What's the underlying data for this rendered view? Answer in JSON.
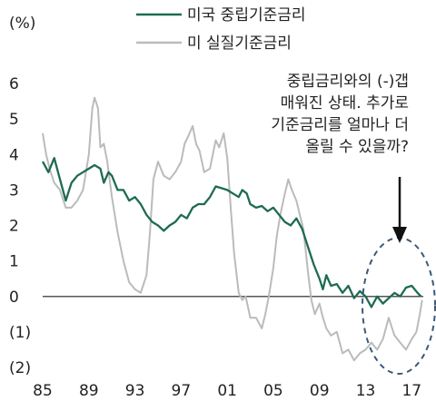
{
  "chart_data": {
    "type": "line",
    "yunit": "(%)",
    "ylim": [
      -2,
      6
    ],
    "xlim": [
      1985,
      2018
    ],
    "y_ticks": [
      {
        "v": 6,
        "label": "6"
      },
      {
        "v": 5,
        "label": "5"
      },
      {
        "v": 4,
        "label": "4"
      },
      {
        "v": 3,
        "label": "3"
      },
      {
        "v": 2,
        "label": "2"
      },
      {
        "v": 1,
        "label": "1"
      },
      {
        "v": 0,
        "label": "0"
      },
      {
        "v": -1,
        "label": "(1)"
      },
      {
        "v": -2,
        "label": "(2)"
      }
    ],
    "x_ticks": [
      {
        "v": 1985,
        "label": "85"
      },
      {
        "v": 1989,
        "label": "89"
      },
      {
        "v": 1993,
        "label": "93"
      },
      {
        "v": 1997,
        "label": "97"
      },
      {
        "v": 2001,
        "label": "01"
      },
      {
        "v": 2005,
        "label": "05"
      },
      {
        "v": 2009,
        "label": "09"
      },
      {
        "v": 2013,
        "label": "13"
      },
      {
        "v": 2017,
        "label": "17"
      }
    ],
    "series": [
      {
        "name": "미국 중립기준금리",
        "color": "#1e6b52",
        "points": [
          [
            1985.0,
            3.8
          ],
          [
            1985.5,
            3.5
          ],
          [
            1986.0,
            3.9
          ],
          [
            1986.5,
            3.3
          ],
          [
            1987.0,
            2.7
          ],
          [
            1987.5,
            3.2
          ],
          [
            1988.0,
            3.4
          ],
          [
            1988.5,
            3.5
          ],
          [
            1989.0,
            3.6
          ],
          [
            1989.5,
            3.7
          ],
          [
            1990.0,
            3.6
          ],
          [
            1990.3,
            3.2
          ],
          [
            1990.7,
            3.5
          ],
          [
            1991.0,
            3.4
          ],
          [
            1991.5,
            3.0
          ],
          [
            1992.0,
            3.0
          ],
          [
            1992.5,
            2.7
          ],
          [
            1993.0,
            2.8
          ],
          [
            1993.5,
            2.6
          ],
          [
            1994.0,
            2.3
          ],
          [
            1994.5,
            2.1
          ],
          [
            1995.0,
            2.0
          ],
          [
            1995.5,
            1.85
          ],
          [
            1996.0,
            2.0
          ],
          [
            1996.5,
            2.1
          ],
          [
            1997.0,
            2.3
          ],
          [
            1997.5,
            2.2
          ],
          [
            1998.0,
            2.5
          ],
          [
            1998.5,
            2.6
          ],
          [
            1999.0,
            2.6
          ],
          [
            1999.5,
            2.8
          ],
          [
            2000.0,
            3.1
          ],
          [
            2000.5,
            3.05
          ],
          [
            2001.0,
            3.0
          ],
          [
            2001.5,
            2.9
          ],
          [
            2002.0,
            2.8
          ],
          [
            2002.3,
            3.0
          ],
          [
            2002.7,
            2.9
          ],
          [
            2003.0,
            2.6
          ],
          [
            2003.5,
            2.5
          ],
          [
            2004.0,
            2.55
          ],
          [
            2004.5,
            2.4
          ],
          [
            2005.0,
            2.5
          ],
          [
            2005.5,
            2.3
          ],
          [
            2006.0,
            2.1
          ],
          [
            2006.5,
            2.0
          ],
          [
            2007.0,
            2.2
          ],
          [
            2007.5,
            1.9
          ],
          [
            2008.0,
            1.4
          ],
          [
            2008.5,
            0.9
          ],
          [
            2009.0,
            0.5
          ],
          [
            2009.3,
            0.2
          ],
          [
            2009.6,
            0.6
          ],
          [
            2010.0,
            0.3
          ],
          [
            2010.5,
            0.35
          ],
          [
            2011.0,
            0.1
          ],
          [
            2011.5,
            0.3
          ],
          [
            2012.0,
            -0.05
          ],
          [
            2012.5,
            0.15
          ],
          [
            2013.0,
            0.0
          ],
          [
            2013.5,
            -0.3
          ],
          [
            2014.0,
            0.0
          ],
          [
            2014.5,
            -0.2
          ],
          [
            2015.0,
            -0.05
          ],
          [
            2015.5,
            0.1
          ],
          [
            2016.0,
            0.0
          ],
          [
            2016.5,
            0.25
          ],
          [
            2017.0,
            0.3
          ],
          [
            2017.5,
            0.1
          ],
          [
            2017.8,
            0.0
          ]
        ]
      },
      {
        "name": "미 실질기준금리",
        "color": "#bbbbbb",
        "points": [
          [
            1985.0,
            4.6
          ],
          [
            1985.3,
            4.0
          ],
          [
            1985.6,
            3.6
          ],
          [
            1986.0,
            3.2
          ],
          [
            1986.5,
            3.0
          ],
          [
            1987.0,
            2.5
          ],
          [
            1987.5,
            2.5
          ],
          [
            1988.0,
            2.7
          ],
          [
            1988.5,
            3.0
          ],
          [
            1989.0,
            4.0
          ],
          [
            1989.3,
            5.3
          ],
          [
            1989.5,
            5.6
          ],
          [
            1989.8,
            5.3
          ],
          [
            1990.0,
            4.2
          ],
          [
            1990.3,
            4.3
          ],
          [
            1990.6,
            3.8
          ],
          [
            1991.0,
            2.8
          ],
          [
            1991.5,
            1.8
          ],
          [
            1992.0,
            1.0
          ],
          [
            1992.5,
            0.4
          ],
          [
            1993.0,
            0.2
          ],
          [
            1993.5,
            0.1
          ],
          [
            1994.0,
            0.6
          ],
          [
            1994.3,
            1.8
          ],
          [
            1994.6,
            3.3
          ],
          [
            1995.0,
            3.8
          ],
          [
            1995.5,
            3.4
          ],
          [
            1996.0,
            3.3
          ],
          [
            1996.5,
            3.5
          ],
          [
            1997.0,
            3.8
          ],
          [
            1997.3,
            4.3
          ],
          [
            1997.6,
            4.5
          ],
          [
            1998.0,
            4.8
          ],
          [
            1998.3,
            4.3
          ],
          [
            1998.6,
            4.1
          ],
          [
            1999.0,
            3.5
          ],
          [
            1999.5,
            3.6
          ],
          [
            2000.0,
            4.4
          ],
          [
            2000.3,
            4.2
          ],
          [
            2000.7,
            4.6
          ],
          [
            2001.0,
            3.9
          ],
          [
            2001.3,
            2.5
          ],
          [
            2001.6,
            1.2
          ],
          [
            2002.0,
            0.1
          ],
          [
            2002.3,
            -0.1
          ],
          [
            2002.6,
            0.0
          ],
          [
            2003.0,
            -0.6
          ],
          [
            2003.5,
            -0.6
          ],
          [
            2004.0,
            -0.9
          ],
          [
            2004.3,
            -0.5
          ],
          [
            2004.6,
            0.0
          ],
          [
            2005.0,
            0.8
          ],
          [
            2005.3,
            1.7
          ],
          [
            2005.6,
            2.3
          ],
          [
            2006.0,
            2.9
          ],
          [
            2006.3,
            3.3
          ],
          [
            2006.6,
            3.0
          ],
          [
            2007.0,
            2.7
          ],
          [
            2007.3,
            2.3
          ],
          [
            2007.6,
            1.9
          ],
          [
            2008.0,
            0.7
          ],
          [
            2008.3,
            -0.1
          ],
          [
            2008.6,
            -0.5
          ],
          [
            2009.0,
            -0.2
          ],
          [
            2009.3,
            -0.6
          ],
          [
            2009.6,
            -0.9
          ],
          [
            2010.0,
            -1.1
          ],
          [
            2010.5,
            -1.0
          ],
          [
            2011.0,
            -1.6
          ],
          [
            2011.5,
            -1.5
          ],
          [
            2012.0,
            -1.8
          ],
          [
            2012.5,
            -1.6
          ],
          [
            2013.0,
            -1.5
          ],
          [
            2013.5,
            -1.3
          ],
          [
            2014.0,
            -1.5
          ],
          [
            2014.5,
            -1.2
          ],
          [
            2015.0,
            -0.6
          ],
          [
            2015.5,
            -1.1
          ],
          [
            2016.0,
            -1.3
          ],
          [
            2016.5,
            -1.5
          ],
          [
            2017.0,
            -1.2
          ],
          [
            2017.4,
            -1.0
          ],
          [
            2017.7,
            -0.5
          ],
          [
            2017.9,
            -0.1
          ]
        ]
      }
    ],
    "annotation": {
      "lines": [
        "중립금리와의 (-)갭",
        "매워진 상태. 추가로",
        "기준금리를 얼마나 더",
        "올릴 수 있을까?"
      ]
    }
  }
}
